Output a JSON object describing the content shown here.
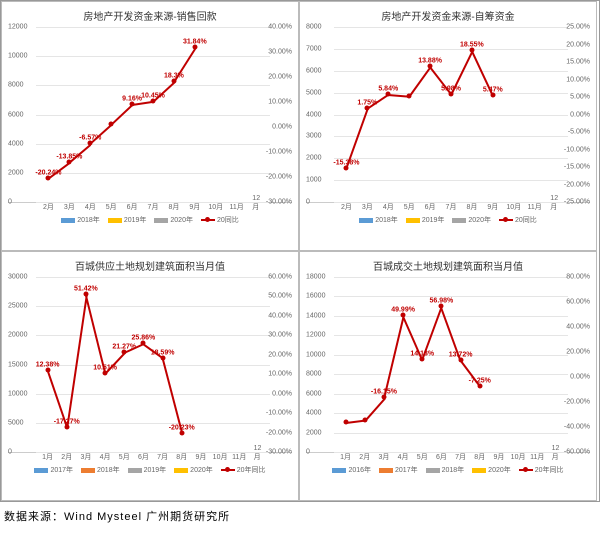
{
  "colors": {
    "c0": "#5b9bd5",
    "c1": "#ed7d31",
    "c2": "#a5a5a5",
    "c3": "#ffc000",
    "line": "#c00000",
    "grid": "#e5e5e5"
  },
  "source": "数据来源：Wind  Mysteel 广州期货研究所",
  "legends": {
    "a": [
      "2018年",
      "2019年",
      "2020年",
      "20同比"
    ],
    "b": [
      "2017年",
      "2018年",
      "2019年",
      "2020年",
      "20年同比"
    ],
    "c": [
      "2016年",
      "2017年",
      "2018年",
      "2020年",
      "20年同比"
    ]
  },
  "charts": [
    {
      "title": "房地产开发资金来源-销售回款",
      "yl": {
        "min": 0,
        "max": 12000,
        "step": 2000
      },
      "yr": {
        "min": -30,
        "max": 40,
        "step": 10,
        "suf": ".00%"
      },
      "legend": "a",
      "barCols": [
        "c0",
        "c3",
        "c2"
      ],
      "x": [
        "2月",
        "3月",
        "4月",
        "5月",
        "6月",
        "7月",
        "8月",
        "9月",
        "10月",
        "11月",
        "12月"
      ],
      "bars": [
        [
          7800,
          10800,
          1800
        ],
        [
          7100,
          7100,
          6000
        ],
        [
          8700,
          7100,
          7100
        ],
        [
          6600,
          6600,
          7100
        ],
        [
          7000,
          7300,
          7800
        ],
        [
          7800,
          7400,
          8000
        ],
        [
          6800,
          8300,
          10900
        ],
        [
          6800,
          8300,
          null
        ],
        [
          6900,
          8400,
          null
        ],
        [
          7000,
          8400,
          null
        ],
        [
          7000,
          8300,
          null
        ]
      ],
      "line": [
        -20.24,
        -13.85,
        -6.57,
        1.1,
        9.16,
        10.45,
        18.3,
        31.84
      ],
      "lshow": [
        1,
        1,
        1,
        0,
        1,
        1,
        1,
        1
      ]
    },
    {
      "title": "房地产开发资金来源-自筹资金",
      "yl": {
        "min": 0,
        "max": 8000,
        "step": 1000
      },
      "yr": {
        "min": -25,
        "max": 25,
        "step": 5,
        "suf": ".00%"
      },
      "legend": "a",
      "barCols": [
        "c0",
        "c3",
        "c2"
      ],
      "x": [
        "2月",
        "3月",
        "4月",
        "5月",
        "6月",
        "7月",
        "8月",
        "9月",
        "10月",
        "11月",
        "12月"
      ],
      "bars": [
        [
          7300,
          6400,
          3000
        ],
        [
          3900,
          4000,
          4000
        ],
        [
          5400,
          5000,
          5600
        ],
        [
          5100,
          3700,
          5800
        ],
        [
          4900,
          6100,
          6000
        ],
        [
          5000,
          6900,
          4800
        ],
        [
          4600,
          4400,
          4800
        ],
        [
          5000,
          4900,
          null
        ],
        [
          5000,
          5600,
          null
        ],
        [
          5100,
          5700,
          null
        ],
        [
          5100,
          5200,
          null
        ]
      ],
      "line": [
        -15.38,
        1.75,
        5.84,
        5.35,
        13.88,
        5.98,
        18.55,
        5.47
      ],
      "lshow": [
        1,
        1,
        1,
        0,
        1,
        1,
        1,
        1
      ]
    },
    {
      "title": "百城供应土地规划建筑面积当月值",
      "yl": {
        "min": 0,
        "max": 30000,
        "step": 5000
      },
      "yr": {
        "min": -30,
        "max": 60,
        "step": 10,
        "suf": ".00%"
      },
      "legend": "b",
      "barCols": [
        "c0",
        "c1",
        "c2",
        "c3"
      ],
      "x": [
        "1月",
        "2月",
        "3月",
        "4月",
        "5月",
        "6月",
        "7月",
        "8月",
        "9月",
        "10月",
        "11月",
        "12月"
      ],
      "bars": [
        [
          9000,
          12000,
          13000,
          14500
        ],
        [
          4500,
          5000,
          7000,
          6000
        ],
        [
          10000,
          10000,
          12500,
          19000
        ],
        [
          9000,
          10000,
          15000,
          16500
        ],
        [
          9500,
          11000,
          13000,
          15700
        ],
        [
          10000,
          12000,
          16000,
          20100
        ],
        [
          11000,
          12000,
          17000,
          20100
        ],
        [
          11000,
          14000,
          22000,
          17500
        ],
        [
          10000,
          11000,
          12000,
          null
        ],
        [
          10000,
          11000,
          12500,
          null
        ],
        [
          11000,
          14000,
          21500,
          null
        ],
        [
          16000,
          19000,
          25500,
          null
        ]
      ],
      "line": [
        12.38,
        -17.27,
        51.42,
        10.51,
        21.27,
        25.86,
        18.59,
        -20.23
      ],
      "lshow": [
        1,
        1,
        1,
        1,
        1,
        1,
        1,
        1
      ]
    },
    {
      "title": "百城成交土地规划建筑面积当月值",
      "yl": {
        "min": 0,
        "max": 18000,
        "step": 2000
      },
      "yr": {
        "min": -60,
        "max": 80,
        "step": 20,
        "suf": ".00%"
      },
      "legend": "c",
      "barCols": [
        "c0",
        "c1",
        "c2",
        "c3"
      ],
      "x": [
        "1月",
        "2月",
        "3月",
        "4月",
        "5月",
        "6月",
        "7月",
        "8月",
        "9月",
        "10月",
        "11月",
        "12月"
      ],
      "bars": [
        [
          10000,
          8000,
          9500,
          6000
        ],
        [
          3500,
          4000,
          8500,
          5500
        ],
        [
          6000,
          7000,
          8500,
          7100
        ],
        [
          6000,
          7500,
          9000,
          13500
        ],
        [
          6000,
          7500,
          8500,
          9700
        ],
        [
          7000,
          8000,
          7500,
          11800
        ],
        [
          7500,
          8500,
          9500,
          10800
        ],
        [
          8000,
          10000,
          11000,
          10200
        ],
        [
          7500,
          9500,
          10500,
          null
        ],
        [
          7500,
          9500,
          10500,
          null
        ],
        [
          8000,
          10500,
          10500,
          null
        ],
        [
          9500,
          14000,
          16000,
          null
        ]
      ],
      "line": [
        -36,
        -34,
        -16.15,
        49.99,
        14.13,
        56.98,
        13.72,
        -7.25
      ],
      "lshow": [
        0,
        0,
        1,
        1,
        1,
        1,
        1,
        1
      ]
    }
  ]
}
